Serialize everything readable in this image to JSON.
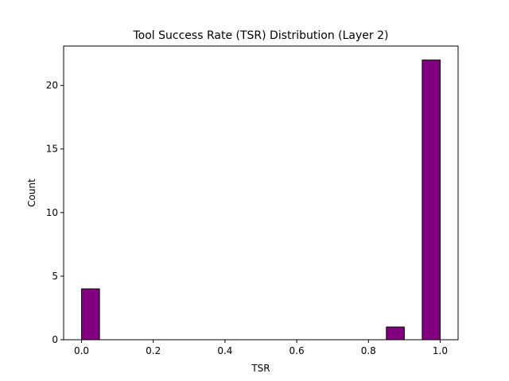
{
  "chart_data": {
    "type": "bar",
    "title": "Tool Success Rate (TSR) Distribution (Layer 2)",
    "xlabel": "TSR",
    "ylabel": "Count",
    "xlim": [
      -0.05,
      1.05
    ],
    "ylim": [
      0,
      23.1
    ],
    "xticks": [
      "0.0",
      "0.2",
      "0.4",
      "0.6",
      "0.8",
      "1.0"
    ],
    "yticks": [
      "0",
      "5",
      "10",
      "15",
      "20"
    ],
    "bin_width": 0.05,
    "bars": [
      {
        "x": 0.0,
        "value": 4
      },
      {
        "x": 0.85,
        "value": 1
      },
      {
        "x": 0.95,
        "value": 22
      }
    ],
    "bar_color": "#800080",
    "edge_color": "#000000",
    "grid": false
  }
}
